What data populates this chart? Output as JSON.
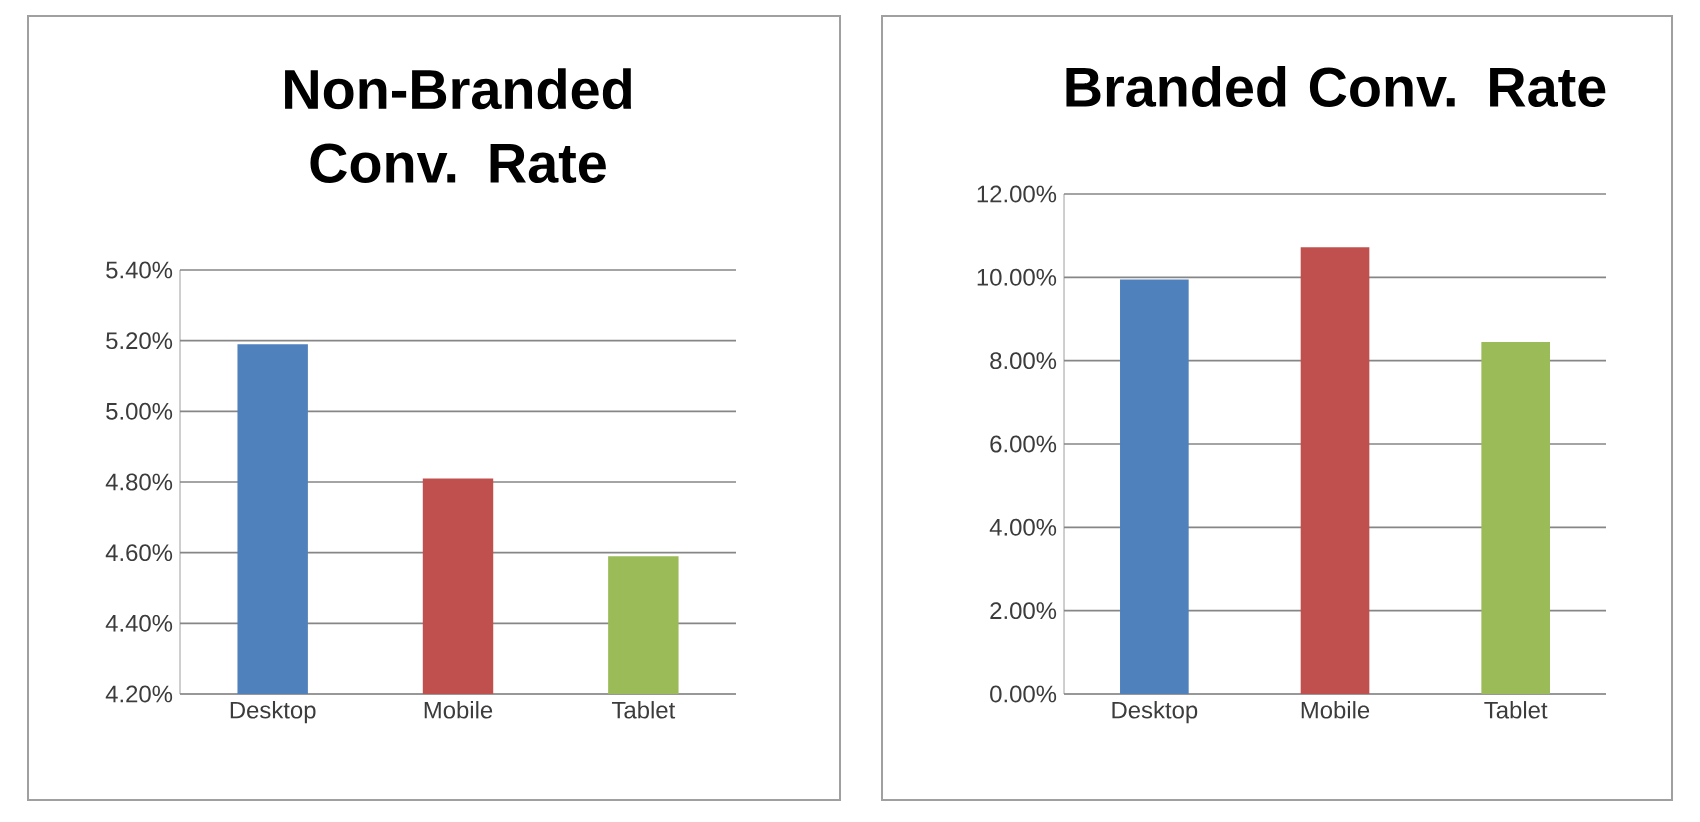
{
  "chart_data": [
    {
      "type": "bar",
      "title": "Non-Branded Conv. Rate",
      "categories": [
        "Desktop",
        "Mobile",
        "Tablet"
      ],
      "values": [
        5.19,
        4.81,
        4.59
      ],
      "colors": [
        "#4f81bd",
        "#c0504d",
        "#9bbb59"
      ],
      "ylim": [
        4.2,
        5.4
      ],
      "yticks": [
        {
          "value": 4.2,
          "label": "4.20%"
        },
        {
          "value": 4.4,
          "label": "4.40%"
        },
        {
          "value": 4.6,
          "label": "4.60%"
        },
        {
          "value": 4.8,
          "label": "4.80%"
        },
        {
          "value": 5.0,
          "label": "5.00%"
        },
        {
          "value": 5.2,
          "label": "5.20%"
        },
        {
          "value": 5.4,
          "label": "5.40%"
        }
      ],
      "grid": "y"
    },
    {
      "type": "bar",
      "title": "Branded Conv. Rate",
      "categories": [
        "Desktop",
        "Mobile",
        "Tablet"
      ],
      "values": [
        9.95,
        10.72,
        8.45
      ],
      "colors": [
        "#4f81bd",
        "#c0504d",
        "#9bbb59"
      ],
      "ylim": [
        0,
        12
      ],
      "yticks": [
        {
          "value": 0,
          "label": "0.00%"
        },
        {
          "value": 2,
          "label": "2.00%"
        },
        {
          "value": 4,
          "label": "4.00%"
        },
        {
          "value": 6,
          "label": "6.00%"
        },
        {
          "value": 8,
          "label": "8.00%"
        },
        {
          "value": 10,
          "label": "10.00%"
        },
        {
          "value": 12,
          "label": "12.00%"
        }
      ],
      "grid": "y"
    }
  ]
}
